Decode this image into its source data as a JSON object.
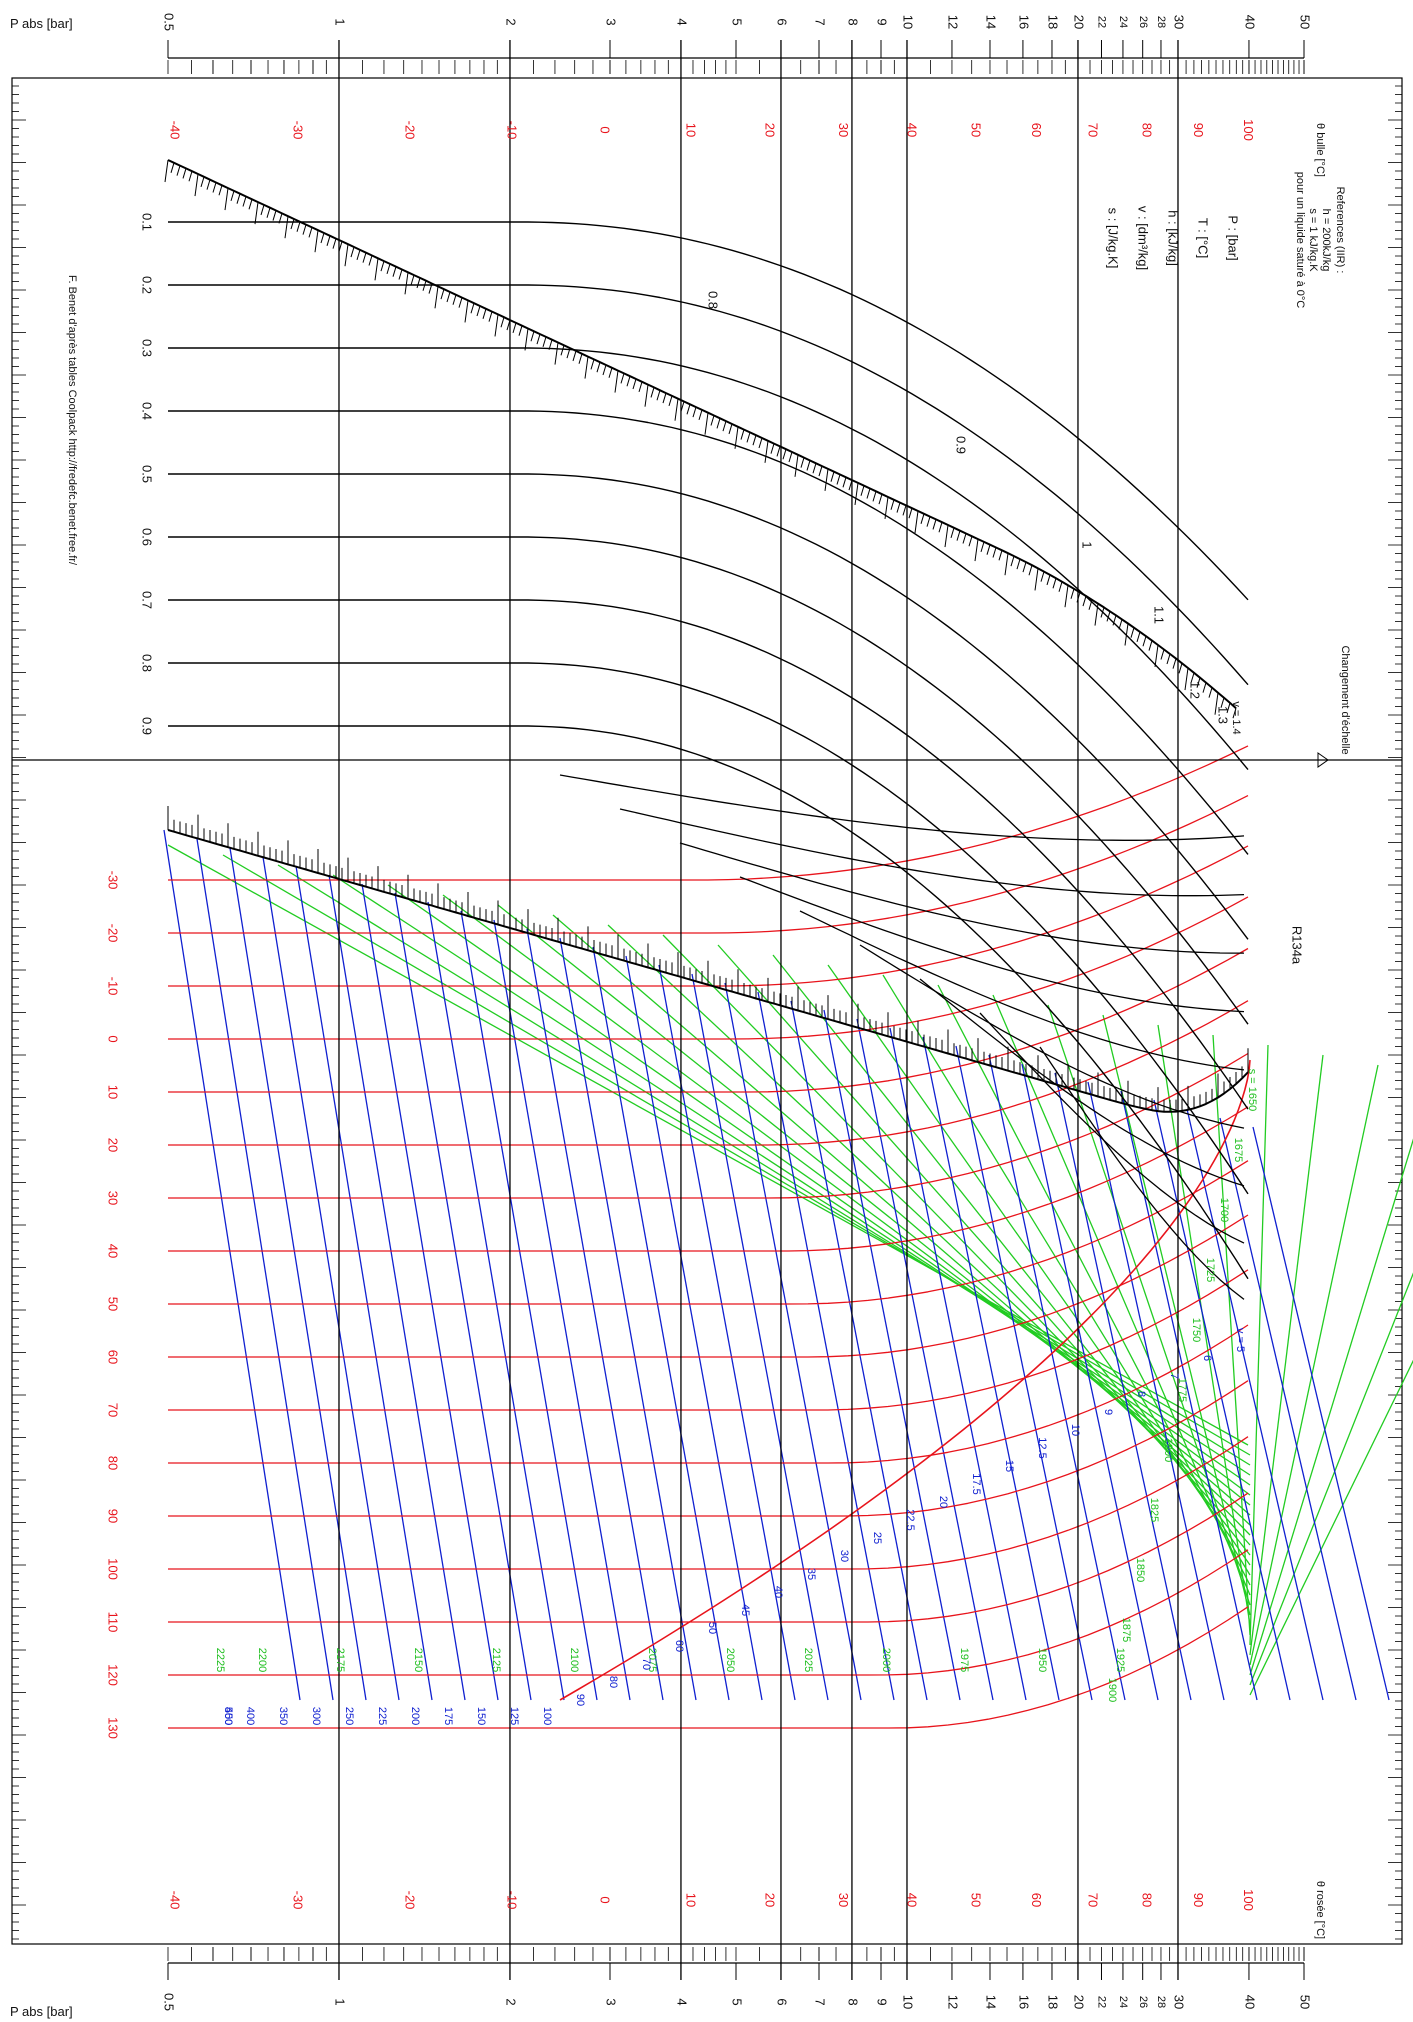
{
  "chart_data": {
    "type": "line",
    "title": "R134a",
    "pressure_axis": {
      "label": "P abs [bar]",
      "scale": "log",
      "ticks": [
        "0.5",
        "1",
        "2",
        "3",
        "4",
        "5",
        "6",
        "7",
        "8",
        "9",
        "10",
        "12",
        "14",
        "16",
        "18",
        "20",
        "22",
        "24",
        "26",
        "28",
        "30",
        "40",
        "50"
      ],
      "values": [
        0.5,
        1,
        2,
        3,
        4,
        5,
        6,
        7,
        8,
        9,
        10,
        12,
        14,
        16,
        18,
        20,
        22,
        24,
        26,
        28,
        30,
        40,
        50
      ]
    },
    "theta_bulle": {
      "label": "θ bulle [°C]",
      "ticks": [
        "-40",
        "-30",
        "-20",
        "-10",
        "0",
        "10",
        "20",
        "30",
        "40",
        "50",
        "60",
        "70",
        "80",
        "90",
        "100"
      ],
      "saturation_pressure_bar": [
        0.512,
        0.844,
        1.327,
        2.006,
        2.928,
        4.146,
        5.717,
        7.702,
        10.166,
        13.179,
        16.818,
        21.168,
        26.332,
        32.442,
        39.72
      ]
    },
    "theta_rosee": {
      "label": "θ rosée [°C]",
      "ticks": [
        "-40",
        "-30",
        "-20",
        "-10",
        "0",
        "10",
        "20",
        "30",
        "40",
        "50",
        "60",
        "70",
        "80",
        "90",
        "100"
      ]
    },
    "reference_lines_bar": [
      1,
      2,
      4,
      6,
      8,
      10,
      20,
      30
    ],
    "scale_change": {
      "label": "Changement d'échelle",
      "v_label": "v = 1.4"
    },
    "legend": {
      "references_title": "References (IIR) :",
      "references_lines": [
        "h = 200kJ/kg",
        "s = 1 kJ/kg.K",
        "pour un liquide saturé à 0°C"
      ],
      "units": [
        "P : [bar]",
        "T : [°C]",
        "h : [kJ/kg]",
        "v : [dm³/kg]",
        "s : [J/kg.K]"
      ]
    },
    "upper_scale_labels": [
      "0.1",
      "0.2",
      "0.3",
      "0.4",
      "0.5",
      "0.6",
      "0.7",
      "0.8",
      "0.9"
    ],
    "quality_labels": [
      "0.8",
      "0.9",
      "1",
      "1.1",
      "1.2",
      "1.3"
    ],
    "superheat_temperature_labels": [
      "-30",
      "-20",
      "-10",
      "0",
      "10",
      "20",
      "30",
      "40",
      "50",
      "60",
      "70",
      "80",
      "90",
      "100",
      "110",
      "120",
      "130"
    ],
    "isentrope_labels": [
      "s = 1650",
      "1675",
      "1700",
      "1725",
      "1750",
      "1775",
      "1800",
      "1825",
      "1850",
      "1875",
      "1900",
      "1925",
      "1950",
      "1975",
      "2000",
      "2025",
      "2050",
      "2075",
      "2100",
      "2125",
      "2150",
      "2175",
      "2200",
      "2225"
    ],
    "isochore_labels": [
      "v = 5",
      "6",
      "7",
      "8",
      "9",
      "10",
      "12.5",
      "15",
      "17.5",
      "20",
      "22.5",
      "25",
      "30",
      "35",
      "40",
      "45",
      "50",
      "60",
      "70",
      "80",
      "90",
      "100",
      "125",
      "150",
      "175",
      "200",
      "225",
      "250",
      "300",
      "350",
      "400",
      "450",
      "500"
    ],
    "attribution": "F. Benet d'après tables Coolpack http://fredefc.benet.free.fr/",
    "grid": true,
    "colors": {
      "isotherms": "#e8141c",
      "isochores": "#1020d0",
      "isentropes": "#1fbf1f",
      "saturation": "#000000",
      "grid": "#000000"
    }
  }
}
